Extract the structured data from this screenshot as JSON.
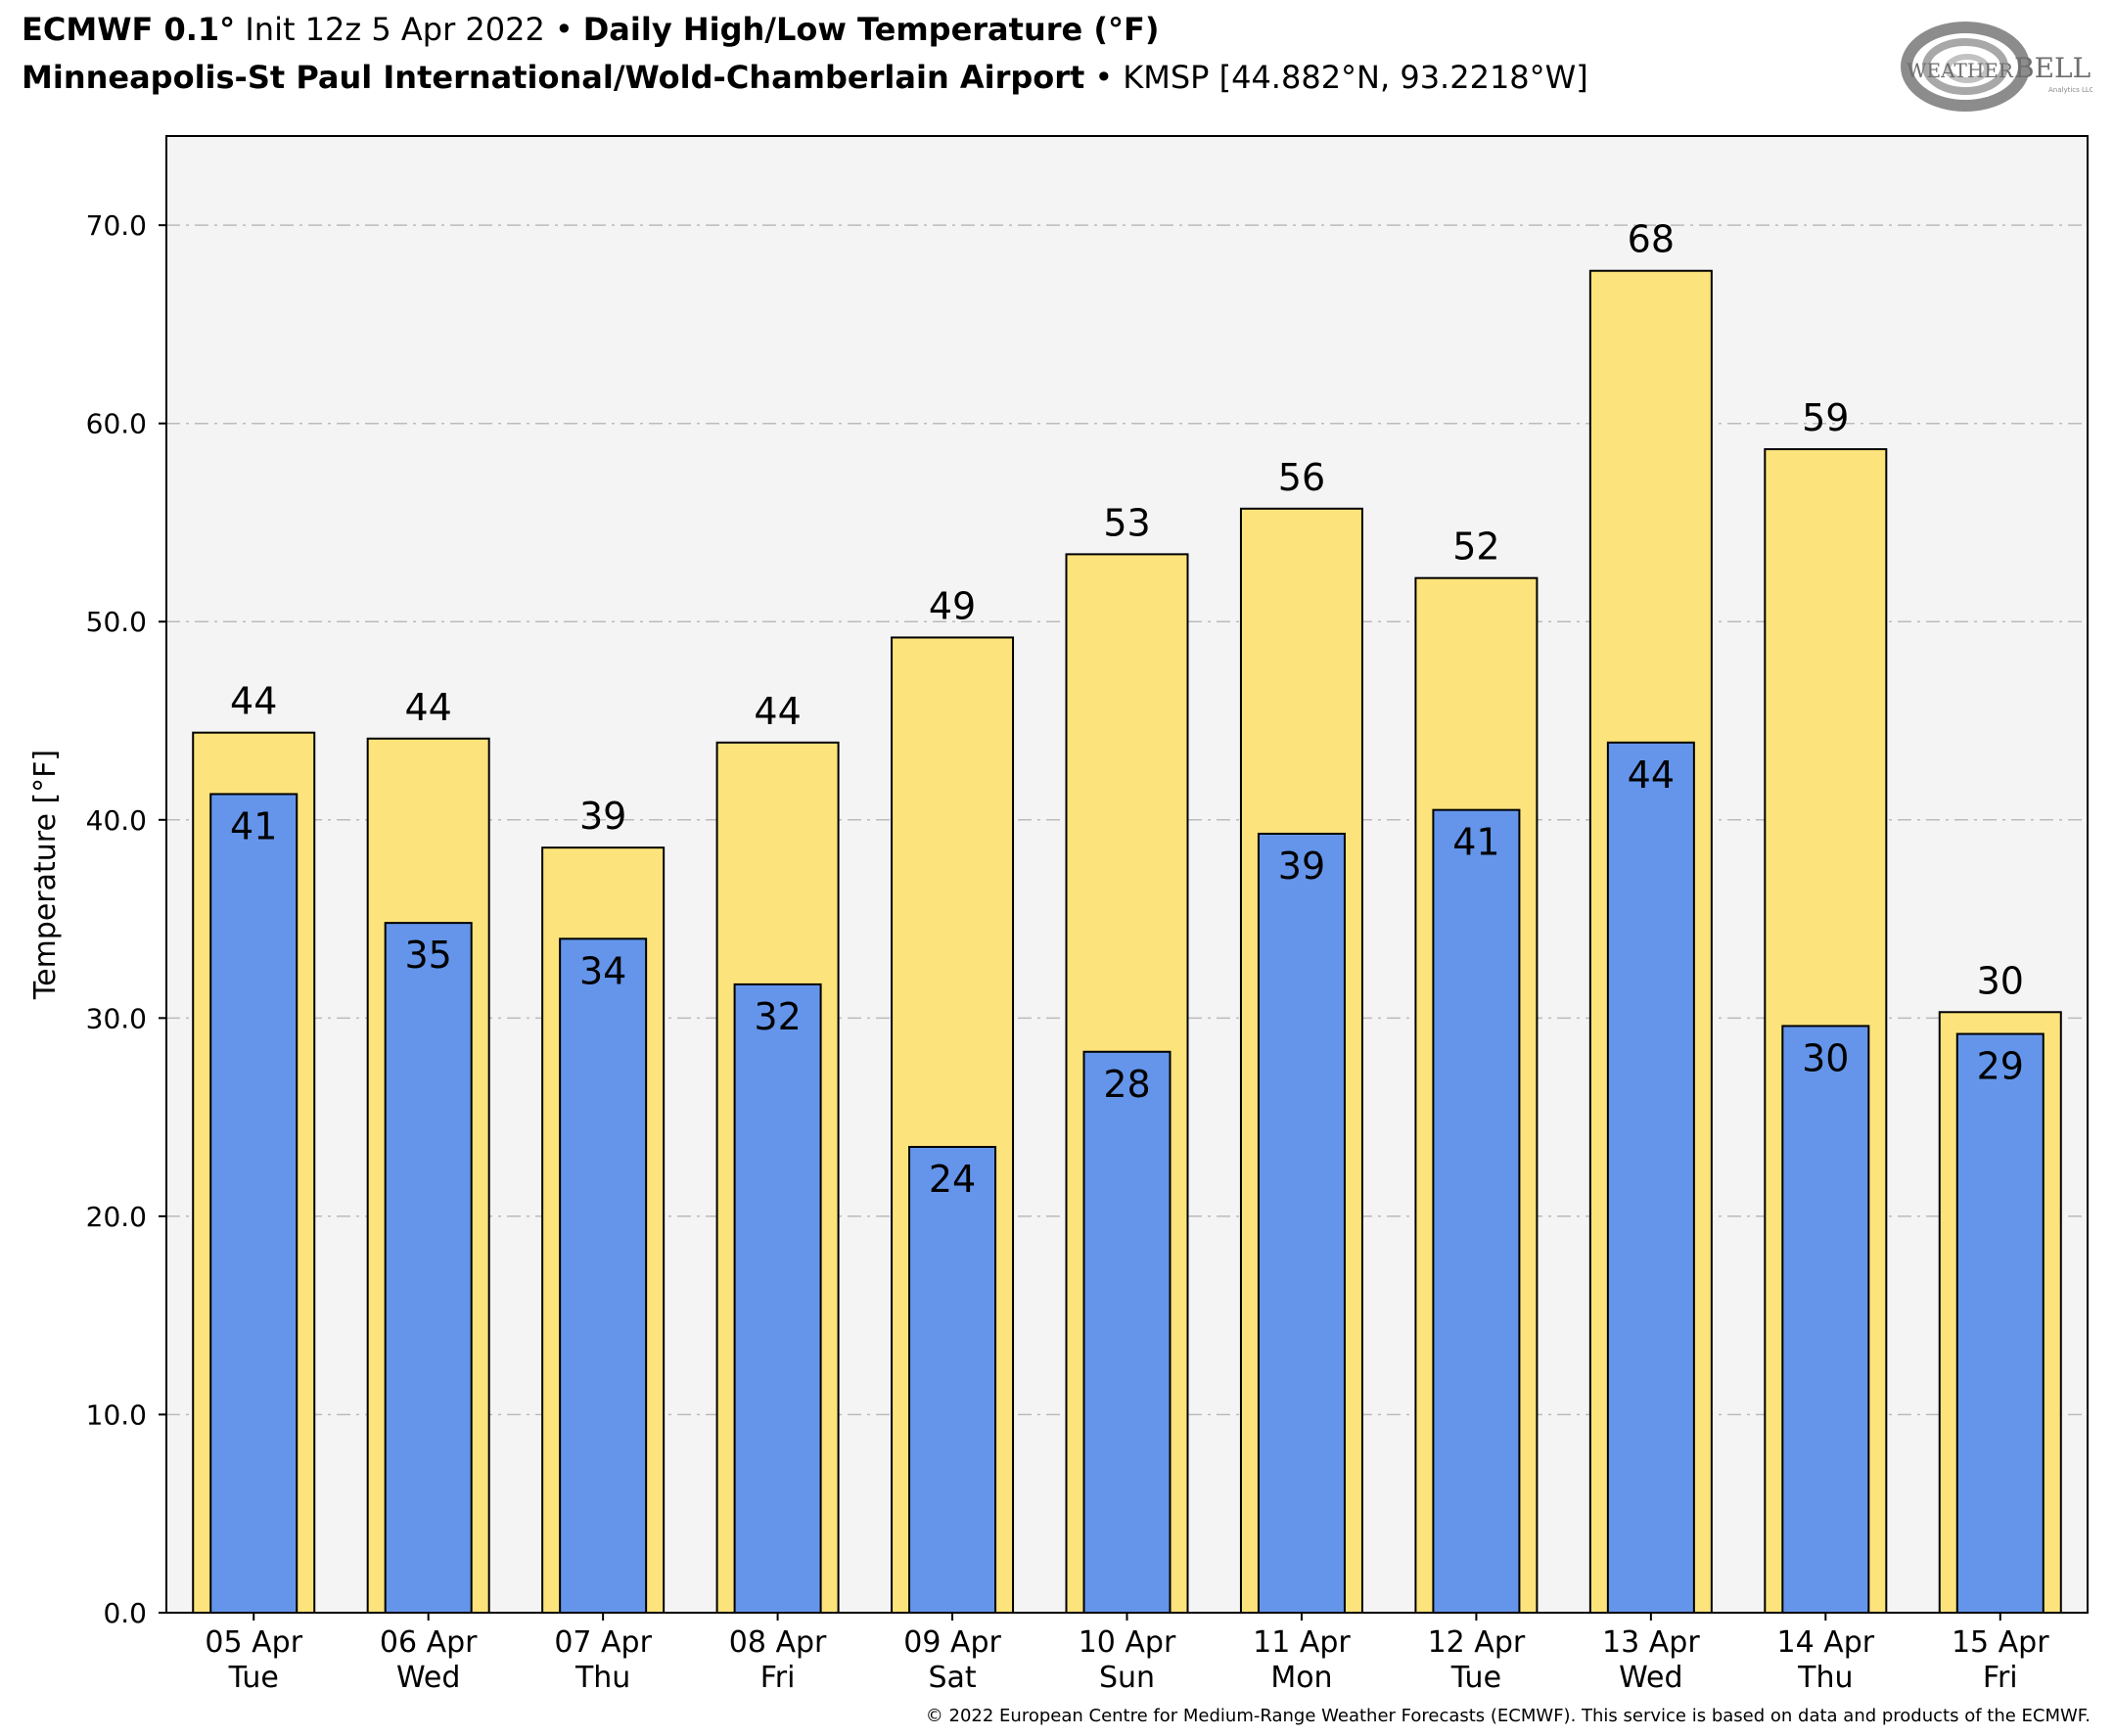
{
  "header": {
    "model": "ECMWF 0.1°",
    "init": "Init 12z 5 Apr 2022",
    "bullet": "•",
    "product": "Daily High/Low Temperature (°F)",
    "station_name": "Minneapolis-St Paul International/Wold-Chamberlain Airport",
    "station_id": "KMSP [44.882°N, 93.2218°W]"
  },
  "logo": {
    "text_left": "WEATHER",
    "text_right": "BELL",
    "sub_text": "Analytics LLC"
  },
  "copyright": "© 2022 European Centre for Medium-Range Weather Forecasts (ECMWF). This service is based on data and products of the ECMWF.",
  "colors": {
    "plot_background": "#f4f4f4",
    "high_bar": "#fce37b",
    "low_bar": "#6495ea",
    "grid": "#bbbbbb"
  },
  "chart_data": {
    "type": "bar",
    "title": "Daily High/Low Temperature (°F)",
    "xlabel": "",
    "ylabel": "Temperature [°F]",
    "ylim": [
      0,
      74.5
    ],
    "yticks": [
      "0.0",
      "10.0",
      "20.0",
      "30.0",
      "40.0",
      "50.0",
      "60.0",
      "70.0"
    ],
    "grid": "horizontal dashed",
    "categories": [
      [
        "05 Apr",
        "Tue"
      ],
      [
        "06 Apr",
        "Wed"
      ],
      [
        "07 Apr",
        "Thu"
      ],
      [
        "08 Apr",
        "Fri"
      ],
      [
        "09 Apr",
        "Sat"
      ],
      [
        "10 Apr",
        "Sun"
      ],
      [
        "11 Apr",
        "Mon"
      ],
      [
        "12 Apr",
        "Tue"
      ],
      [
        "13 Apr",
        "Wed"
      ],
      [
        "14 Apr",
        "Thu"
      ],
      [
        "15 Apr",
        "Fri"
      ]
    ],
    "series": [
      {
        "key": "high",
        "values": [
          44.4,
          44.1,
          38.6,
          43.9,
          49.2,
          53.4,
          55.7,
          52.2,
          67.7,
          58.7,
          30.3
        ],
        "labels": [
          "44",
          "44",
          "39",
          "44",
          "49",
          "53",
          "56",
          "52",
          "68",
          "59",
          "30"
        ]
      },
      {
        "key": "low",
        "values": [
          41.3,
          34.8,
          34.0,
          31.7,
          23.5,
          28.3,
          39.3,
          40.5,
          43.9,
          29.6,
          29.2
        ],
        "labels": [
          "41",
          "35",
          "34",
          "32",
          "24",
          "28",
          "39",
          "41",
          "44",
          "30",
          "29"
        ]
      }
    ]
  }
}
